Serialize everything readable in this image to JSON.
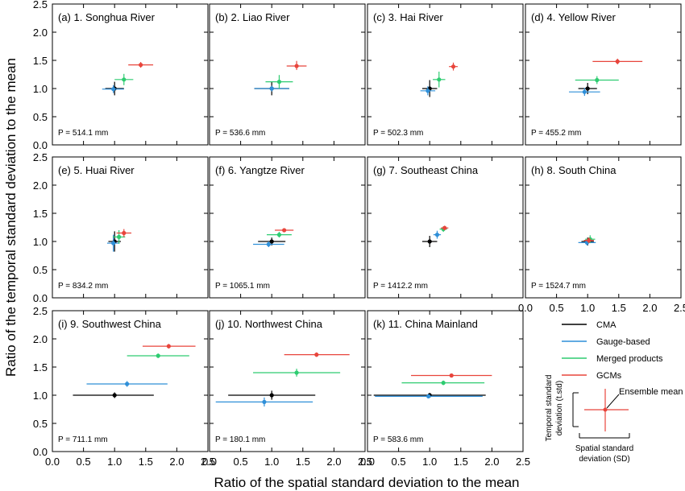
{
  "figure": {
    "ylabel": "Ratio of the temporal standard deviation to the mean",
    "xlabel": "Ratio of the spatial standard deviation to the mean"
  },
  "colors": {
    "CMA": "#000000",
    "Gauge-based": "#2f8fd8",
    "Merged products": "#2ecc71",
    "GCMs": "#e8453c"
  },
  "axes": {
    "xlim": [
      0.0,
      2.5
    ],
    "ylim": [
      0.0,
      2.5
    ],
    "xticks": [
      "0.0",
      "0.5",
      "1.0",
      "1.5",
      "2.0",
      "2.5"
    ],
    "yticks": [
      "0.0",
      "0.5",
      "1.0",
      "1.5",
      "2.0",
      "2.5"
    ]
  },
  "chart_data": [
    {
      "type": "scatter",
      "title": "(a) 1. Songhua River",
      "annotation": "P = 514.1 mm",
      "series": [
        {
          "name": "CMA",
          "x": 1.0,
          "y": 1.0,
          "xerr": [
            0.85,
            1.15
          ],
          "yerr": [
            0.88,
            1.12
          ]
        },
        {
          "name": "Gauge-based",
          "x": 0.98,
          "y": 0.99,
          "xerr": [
            0.8,
            1.15
          ],
          "yerr": [
            0.92,
            1.06
          ]
        },
        {
          "name": "Merged products",
          "x": 1.15,
          "y": 1.16,
          "xerr": [
            1.0,
            1.3
          ],
          "yerr": [
            1.06,
            1.26
          ]
        },
        {
          "name": "GCMs",
          "x": 1.42,
          "y": 1.42,
          "xerr": [
            1.22,
            1.62
          ],
          "yerr": [
            1.37,
            1.47
          ]
        }
      ]
    },
    {
      "type": "scatter",
      "title": "(b) 2. Liao River",
      "annotation": "P = 536.6 mm",
      "series": [
        {
          "name": "CMA",
          "x": 1.0,
          "y": 1.0,
          "xerr": [
            0.72,
            1.28
          ],
          "yerr": [
            0.88,
            1.12
          ]
        },
        {
          "name": "Gauge-based",
          "x": 1.0,
          "y": 1.0,
          "xerr": [
            0.72,
            1.28
          ],
          "yerr": [
            0.95,
            1.05
          ]
        },
        {
          "name": "Merged products",
          "x": 1.12,
          "y": 1.12,
          "xerr": [
            0.9,
            1.34
          ],
          "yerr": [
            1.0,
            1.24
          ]
        },
        {
          "name": "GCMs",
          "x": 1.4,
          "y": 1.4,
          "xerr": [
            1.24,
            1.56
          ],
          "yerr": [
            1.33,
            1.49
          ]
        }
      ]
    },
    {
      "type": "scatter",
      "title": "(c) 3. Hai River",
      "annotation": "P = 502.3 mm",
      "series": [
        {
          "name": "CMA",
          "x": 1.0,
          "y": 1.0,
          "xerr": [
            0.88,
            1.12
          ],
          "yerr": [
            0.85,
            1.15
          ]
        },
        {
          "name": "Gauge-based",
          "x": 0.97,
          "y": 0.96,
          "xerr": [
            0.85,
            1.09
          ],
          "yerr": [
            0.88,
            1.04
          ]
        },
        {
          "name": "Merged products",
          "x": 1.15,
          "y": 1.16,
          "xerr": [
            1.05,
            1.25
          ],
          "yerr": [
            1.02,
            1.3
          ]
        },
        {
          "name": "GCMs",
          "x": 1.38,
          "y": 1.39,
          "xerr": [
            1.31,
            1.45
          ],
          "yerr": [
            1.32,
            1.46
          ]
        }
      ]
    },
    {
      "type": "scatter",
      "title": "(d) 4. Yellow River",
      "annotation": "P = 455.2 mm",
      "series": [
        {
          "name": "CMA",
          "x": 1.0,
          "y": 1.0,
          "xerr": [
            0.85,
            1.15
          ],
          "yerr": [
            0.9,
            1.1
          ]
        },
        {
          "name": "Gauge-based",
          "x": 0.95,
          "y": 0.94,
          "xerr": [
            0.7,
            1.2
          ],
          "yerr": [
            0.87,
            1.01
          ]
        },
        {
          "name": "Merged products",
          "x": 1.15,
          "y": 1.15,
          "xerr": [
            0.8,
            1.5
          ],
          "yerr": [
            1.08,
            1.22
          ]
        },
        {
          "name": "GCMs",
          "x": 1.48,
          "y": 1.48,
          "xerr": [
            1.08,
            1.88
          ],
          "yerr": [
            1.43,
            1.53
          ]
        }
      ]
    },
    {
      "type": "scatter",
      "title": "(e) 5. Huai River",
      "annotation": "P = 834.2 mm",
      "series": [
        {
          "name": "CMA",
          "x": 1.0,
          "y": 1.0,
          "xerr": [
            0.9,
            1.1
          ],
          "yerr": [
            0.82,
            1.18
          ]
        },
        {
          "name": "Gauge-based",
          "x": 0.98,
          "y": 0.97,
          "xerr": [
            0.88,
            1.08
          ],
          "yerr": [
            0.82,
            1.12
          ]
        },
        {
          "name": "Merged products",
          "x": 1.07,
          "y": 1.08,
          "xerr": [
            0.97,
            1.17
          ],
          "yerr": [
            0.96,
            1.2
          ]
        },
        {
          "name": "GCMs",
          "x": 1.15,
          "y": 1.15,
          "xerr": [
            1.03,
            1.27
          ],
          "yerr": [
            1.08,
            1.22
          ]
        }
      ]
    },
    {
      "type": "scatter",
      "title": "(f) 6. Yangtze River",
      "annotation": "P = 1065.1 mm",
      "series": [
        {
          "name": "CMA",
          "x": 1.0,
          "y": 1.0,
          "xerr": [
            0.78,
            1.22
          ],
          "yerr": [
            0.93,
            1.07
          ]
        },
        {
          "name": "Gauge-based",
          "x": 0.95,
          "y": 0.95,
          "xerr": [
            0.7,
            1.2
          ],
          "yerr": [
            0.9,
            1.0
          ]
        },
        {
          "name": "Merged products",
          "x": 1.12,
          "y": 1.12,
          "xerr": [
            0.92,
            1.32
          ],
          "yerr": [
            1.07,
            1.17
          ]
        },
        {
          "name": "GCMs",
          "x": 1.2,
          "y": 1.2,
          "xerr": [
            1.05,
            1.35
          ],
          "yerr": [
            1.17,
            1.23
          ]
        }
      ]
    },
    {
      "type": "scatter",
      "title": "(g) 7. Southeast China",
      "annotation": "P = 1412.2 mm",
      "series": [
        {
          "name": "CMA",
          "x": 1.0,
          "y": 1.0,
          "xerr": [
            0.88,
            1.12
          ],
          "yerr": [
            0.9,
            1.1
          ]
        },
        {
          "name": "Gauge-based",
          "x": 1.12,
          "y": 1.12,
          "xerr": [
            1.06,
            1.18
          ],
          "yerr": [
            1.05,
            1.19
          ]
        },
        {
          "name": "Merged products",
          "x": 1.22,
          "y": 1.22,
          "xerr": [
            1.16,
            1.28
          ],
          "yerr": [
            1.17,
            1.27
          ]
        },
        {
          "name": "GCMs",
          "x": 1.24,
          "y": 1.24,
          "xerr": [
            1.18,
            1.3
          ],
          "yerr": [
            1.2,
            1.28
          ]
        }
      ]
    },
    {
      "type": "scatter",
      "title": "(h) 8. South China",
      "annotation": "P = 1524.7 mm",
      "series": [
        {
          "name": "CMA",
          "x": 1.0,
          "y": 1.0,
          "xerr": [
            0.9,
            1.1
          ],
          "yerr": [
            0.93,
            1.07
          ]
        },
        {
          "name": "Gauge-based",
          "x": 0.99,
          "y": 0.98,
          "xerr": [
            0.85,
            1.13
          ],
          "yerr": [
            0.93,
            1.03
          ]
        },
        {
          "name": "Merged products",
          "x": 1.04,
          "y": 1.04,
          "xerr": [
            0.96,
            1.12
          ],
          "yerr": [
            0.97,
            1.11
          ]
        },
        {
          "name": "GCMs",
          "x": 1.02,
          "y": 1.02,
          "xerr": [
            0.94,
            1.1
          ],
          "yerr": [
            0.97,
            1.07
          ]
        }
      ]
    },
    {
      "type": "scatter",
      "title": "(i) 9. Southwest China",
      "annotation": "P = 711.1 mm",
      "series": [
        {
          "name": "CMA",
          "x": 1.0,
          "y": 1.0,
          "xerr": [
            0.33,
            1.63
          ],
          "yerr": [
            0.95,
            1.05
          ]
        },
        {
          "name": "Gauge-based",
          "x": 1.2,
          "y": 1.2,
          "xerr": [
            0.55,
            1.85
          ],
          "yerr": [
            1.15,
            1.25
          ]
        },
        {
          "name": "Merged products",
          "x": 1.7,
          "y": 1.7,
          "xerr": [
            1.2,
            2.2
          ],
          "yerr": [
            1.66,
            1.74
          ]
        },
        {
          "name": "GCMs",
          "x": 1.87,
          "y": 1.87,
          "xerr": [
            1.45,
            2.3
          ],
          "yerr": [
            1.83,
            1.91
          ]
        }
      ]
    },
    {
      "type": "scatter",
      "title": "(j) 10. Northwest China",
      "annotation": "P = 180.1 mm",
      "series": [
        {
          "name": "CMA",
          "x": 1.0,
          "y": 1.0,
          "xerr": [
            0.3,
            1.7
          ],
          "yerr": [
            0.92,
            1.08
          ]
        },
        {
          "name": "Gauge-based",
          "x": 0.88,
          "y": 0.88,
          "xerr": [
            0.1,
            1.66
          ],
          "yerr": [
            0.8,
            0.96
          ]
        },
        {
          "name": "Merged products",
          "x": 1.4,
          "y": 1.4,
          "xerr": [
            0.7,
            2.1
          ],
          "yerr": [
            1.33,
            1.47
          ]
        },
        {
          "name": "GCMs",
          "x": 1.72,
          "y": 1.72,
          "xerr": [
            1.2,
            2.25
          ],
          "yerr": [
            1.68,
            1.76
          ]
        }
      ]
    },
    {
      "type": "scatter",
      "title": "(k) 11. China Mainland",
      "annotation": "P = 583.6 mm",
      "series": [
        {
          "name": "CMA",
          "x": 1.0,
          "y": 1.0,
          "xerr": [
            0.1,
            1.9
          ],
          "yerr": [
            0.96,
            1.04
          ]
        },
        {
          "name": "Gauge-based",
          "x": 0.98,
          "y": 0.98,
          "xerr": [
            0.12,
            1.85
          ],
          "yerr": [
            0.95,
            1.01
          ]
        },
        {
          "name": "Merged products",
          "x": 1.22,
          "y": 1.22,
          "xerr": [
            0.55,
            1.88
          ],
          "yerr": [
            1.18,
            1.26
          ]
        },
        {
          "name": "GCMs",
          "x": 1.35,
          "y": 1.35,
          "xerr": [
            0.7,
            2.0
          ],
          "yerr": [
            1.32,
            1.38
          ]
        }
      ]
    }
  ],
  "legend": {
    "items": [
      "CMA",
      "Gauge-based",
      "Merged products",
      "GCMs"
    ],
    "schematic": {
      "ensemble_label": "Ensemble mean",
      "temporal_label_1": "Temporal standard",
      "temporal_label_2": "deviation (t.std)",
      "spatial_label_1": "Spatial standard",
      "spatial_label_2": "deviation (SD)"
    }
  }
}
